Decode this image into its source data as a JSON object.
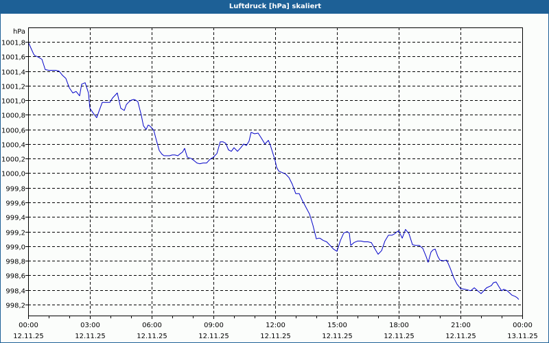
{
  "window": {
    "title": "Luftdruck [hPa] skaliert"
  },
  "colors": {
    "titlebar": "#1d6096",
    "line": "#0000c8",
    "grid": "#000000",
    "background": "#fbfdfb"
  },
  "chart_data": {
    "type": "line",
    "title": "Luftdruck [hPa] skaliert",
    "xlabel": "",
    "ylabel": "hPa",
    "ylim": [
      998.05,
      1001.99
    ],
    "xlim_hours": [
      0,
      24
    ],
    "grid": true,
    "legend": null,
    "y_ticks": [
      "1001,8",
      "1001,6",
      "1001,4",
      "1001,2",
      "1001,0",
      "1000,8",
      "1000,6",
      "1000,4",
      "1000,2",
      "1000,0",
      "999,8",
      "999,6",
      "999,4",
      "999,2",
      "999,0",
      "998,8",
      "998,6",
      "998,4",
      "998,2"
    ],
    "x_ticks": [
      {
        "time": "00:00",
        "date": "12.11.25"
      },
      {
        "time": "03:00",
        "date": "12.11.25"
      },
      {
        "time": "06:00",
        "date": "12.11.25"
      },
      {
        "time": "09:00",
        "date": "12.11.25"
      },
      {
        "time": "12:00",
        "date": "12.11.25"
      },
      {
        "time": "15:00",
        "date": "12.11.25"
      },
      {
        "time": "18:00",
        "date": "12.11.25"
      },
      {
        "time": "21:00",
        "date": "12.11.25"
      },
      {
        "time": "00:00",
        "date": "13.11.25"
      }
    ],
    "series": [
      {
        "name": "Luftdruck",
        "x_hours": [
          0,
          0.27,
          0.33,
          0.5,
          0.67,
          0.83,
          1.0,
          1.17,
          1.33,
          1.5,
          1.67,
          1.83,
          2.0,
          2.17,
          2.33,
          2.5,
          2.6,
          2.77,
          2.93,
          3.0,
          3.17,
          3.33,
          3.43,
          3.6,
          3.77,
          3.8,
          3.87,
          3.97,
          4.1,
          4.33,
          4.5,
          4.67,
          4.77,
          4.87,
          5.0,
          5.13,
          5.23,
          5.33,
          5.5,
          5.6,
          5.73,
          5.83,
          5.9,
          6.0,
          6.1,
          6.23,
          6.37,
          6.5,
          6.6,
          6.73,
          6.87,
          7.0,
          7.13,
          7.27,
          7.4,
          7.5,
          7.6,
          7.73,
          7.83,
          7.93,
          8.07,
          8.2,
          8.33,
          8.5,
          8.67,
          8.83,
          9.0,
          9.17,
          9.33,
          9.47,
          9.6,
          9.73,
          9.87,
          10.0,
          10.17,
          10.33,
          10.47,
          10.6,
          10.73,
          10.83,
          11.0,
          11.17,
          11.33,
          11.5,
          11.67,
          11.77,
          12.0,
          12.07,
          12.17,
          12.33,
          12.5,
          12.67,
          12.83,
          13.0,
          13.17,
          13.33,
          13.5,
          13.67,
          13.83,
          14.0,
          14.1,
          14.17,
          14.33,
          14.5,
          14.67,
          14.83,
          15.0,
          15.17,
          15.33,
          15.5,
          15.6,
          15.67,
          15.83,
          16.0,
          16.17,
          16.33,
          16.5,
          16.67,
          16.83,
          17.0,
          17.17,
          17.33,
          17.5,
          17.67,
          17.8,
          17.93,
          18.0,
          18.17,
          18.33,
          18.5,
          18.67,
          18.83,
          19.0,
          19.17,
          19.33,
          19.43,
          19.57,
          19.67,
          19.77,
          19.9,
          20.0,
          20.17,
          20.33,
          20.5,
          20.67,
          20.83,
          21.0,
          21.23,
          21.5,
          21.67,
          21.83,
          22.0,
          22.27,
          22.5,
          22.6,
          22.73,
          22.9,
          23.0,
          23.1,
          23.27,
          23.5,
          23.67,
          23.77,
          23.83
        ],
        "values": [
          1001.8,
          1001.63,
          1001.61,
          1001.59,
          1001.56,
          1001.42,
          1001.41,
          1001.41,
          1001.41,
          1001.4,
          1001.34,
          1001.3,
          1001.17,
          1001.1,
          1001.12,
          1001.06,
          1001.22,
          1001.24,
          1001.1,
          1000.89,
          1000.82,
          1000.76,
          1000.84,
          1000.97,
          1000.97,
          1000.97,
          1000.97,
          1000.97,
          1001.03,
          1001.1,
          1000.89,
          1000.86,
          1000.94,
          1000.97,
          1001.0,
          1001.01,
          1001.0,
          1000.98,
          1000.79,
          1000.65,
          1000.6,
          1000.66,
          1000.65,
          1000.62,
          1000.59,
          1000.45,
          1000.31,
          1000.26,
          1000.24,
          1000.24,
          1000.24,
          1000.25,
          1000.25,
          1000.24,
          1000.27,
          1000.29,
          1000.34,
          1000.22,
          1000.21,
          1000.2,
          1000.17,
          1000.14,
          1000.13,
          1000.14,
          1000.14,
          1000.19,
          1000.22,
          1000.27,
          1000.43,
          1000.43,
          1000.41,
          1000.32,
          1000.3,
          1000.35,
          1000.3,
          1000.35,
          1000.4,
          1000.38,
          1000.44,
          1000.56,
          1000.54,
          1000.55,
          1000.48,
          1000.4,
          1000.45,
          1000.38,
          1000.17,
          1000.08,
          1000.03,
          1000.01,
          999.99,
          999.94,
          999.85,
          999.72,
          999.72,
          999.62,
          999.53,
          999.44,
          999.29,
          999.1,
          999.11,
          999.11,
          999.08,
          999.06,
          999.01,
          998.96,
          998.93,
          999.08,
          999.18,
          999.2,
          999.18,
          999.01,
          999.05,
          999.07,
          999.07,
          999.06,
          999.06,
          999.05,
          998.97,
          998.89,
          998.94,
          999.07,
          999.15,
          999.15,
          999.17,
          999.2,
          999.21,
          999.11,
          999.23,
          999.17,
          999.02,
          999.01,
          999.01,
          998.97,
          998.86,
          998.78,
          998.92,
          998.95,
          998.96,
          998.86,
          998.81,
          998.8,
          998.81,
          998.7,
          998.57,
          998.48,
          998.42,
          998.41,
          998.39,
          998.43,
          998.39,
          998.35,
          998.43,
          998.46,
          998.5,
          998.51,
          998.43,
          998.39,
          998.41,
          998.39,
          998.33,
          998.31,
          998.29,
          998.27,
          998.24
        ]
      }
    ]
  }
}
